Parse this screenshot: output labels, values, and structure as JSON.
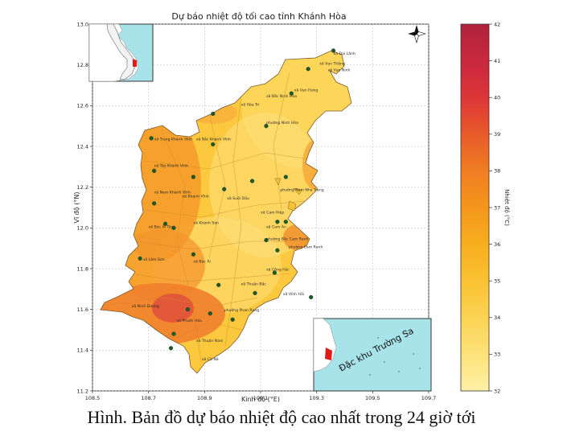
{
  "map": {
    "title": "Dự báo nhiệt độ tối cao tỉnh Khánh Hòa",
    "xlabel": "Kinh độ (°E)",
    "ylabel": "Vĩ độ (°N)",
    "x_ticks": [
      "108.5",
      "108.7",
      "108.9",
      "109.1",
      "109.3",
      "109.5",
      "109.7"
    ],
    "y_ticks": [
      "13.0",
      "12.8",
      "12.6",
      "12.4",
      "12.2",
      "12.0",
      "11.8",
      "11.6",
      "11.4",
      "11.2"
    ],
    "grid": true,
    "inset_label": "Đặc khu Trường Sa",
    "colorbar": {
      "label": "Nhiệt độ (°C)",
      "ticks": [
        "42",
        "41",
        "40",
        "39",
        "38",
        "37",
        "36",
        "35",
        "34",
        "33",
        "32"
      ],
      "colors": [
        "#b0233c",
        "#c8283e",
        "#dd3539",
        "#e85a2a",
        "#f07d22",
        "#f4961c",
        "#f7ae1e",
        "#f9c232",
        "#fbd354",
        "#fde27a",
        "#fef0a6"
      ]
    },
    "labels": [
      {
        "text": "xã Đại Lãnh",
        "lon": 109.36,
        "lat": 12.85
      },
      {
        "text": "xã Vạn Thắng",
        "lon": 109.31,
        "lat": 12.8
      },
      {
        "text": "xã Vạn Ninh",
        "lon": 109.34,
        "lat": 12.77
      },
      {
        "text": "xã Vạn Hưng",
        "lon": 109.22,
        "lat": 12.67
      },
      {
        "text": "xã Bắc Ninh Hòa",
        "lon": 109.12,
        "lat": 12.64
      },
      {
        "text": "xã Hòa Trí",
        "lon": 109.03,
        "lat": 12.6
      },
      {
        "text": "phường Ninh Hòa",
        "lon": 109.12,
        "lat": 12.51
      },
      {
        "text": "xã Bắc Khánh Vĩnh",
        "lon": 108.87,
        "lat": 12.43
      },
      {
        "text": "xã Trung Khánh Vĩnh",
        "lon": 108.72,
        "lat": 12.43
      },
      {
        "text": "xã Tây Khánh Vĩnh",
        "lon": 108.72,
        "lat": 12.3
      },
      {
        "text": "xã Nam Khánh Vĩnh",
        "lon": 108.72,
        "lat": 12.17
      },
      {
        "text": "xã Khánh Vĩnh",
        "lon": 108.82,
        "lat": 12.15
      },
      {
        "text": "xã Suối Dầu",
        "lon": 108.98,
        "lat": 12.14
      },
      {
        "text": "phường Nam Nha Trang",
        "lon": 109.17,
        "lat": 12.18
      },
      {
        "text": "xã Cam Hiệp",
        "lon": 109.1,
        "lat": 12.07
      },
      {
        "text": "xã Khánh Sơn",
        "lon": 108.86,
        "lat": 12.02
      },
      {
        "text": "xã Bác Ái Tây",
        "lon": 108.7,
        "lat": 12.0
      },
      {
        "text": "xã Cam An",
        "lon": 109.12,
        "lat": 12.0
      },
      {
        "text": "phường Bắc Cam Ranh",
        "lon": 109.12,
        "lat": 11.94
      },
      {
        "text": "phường Cam Ranh",
        "lon": 109.2,
        "lat": 11.9
      },
      {
        "text": "xã Lâm Sơn",
        "lon": 108.68,
        "lat": 11.84
      },
      {
        "text": "xã Bác Ái",
        "lon": 108.86,
        "lat": 11.83
      },
      {
        "text": "xã Công Hải",
        "lon": 109.12,
        "lat": 11.79
      },
      {
        "text": "xã Thuận Bắc",
        "lon": 109.03,
        "lat": 11.72
      },
      {
        "text": "xã Vĩnh Hải",
        "lon": 109.18,
        "lat": 11.67
      },
      {
        "text": "xã Ninh Dương",
        "lon": 108.64,
        "lat": 11.61
      },
      {
        "text": "xã Phước Hữu",
        "lon": 108.8,
        "lat": 11.54
      },
      {
        "text": "phường Phan Rang",
        "lon": 108.97,
        "lat": 11.59
      },
      {
        "text": "xã Thuận Nam",
        "lon": 108.87,
        "lat": 11.44
      },
      {
        "text": "xã Cà Ná",
        "lon": 108.89,
        "lat": 11.35
      }
    ],
    "markers": [
      {
        "lon": 109.36,
        "lat": 12.87
      },
      {
        "lon": 109.27,
        "lat": 12.78
      },
      {
        "lon": 109.21,
        "lat": 12.66
      },
      {
        "lon": 108.93,
        "lat": 12.56
      },
      {
        "lon": 109.12,
        "lat": 12.5
      },
      {
        "lon": 108.93,
        "lat": 12.41
      },
      {
        "lon": 108.71,
        "lat": 12.44
      },
      {
        "lon": 108.72,
        "lat": 12.28
      },
      {
        "lon": 108.72,
        "lat": 12.12
      },
      {
        "lon": 108.86,
        "lat": 12.25
      },
      {
        "lon": 108.97,
        "lat": 12.19
      },
      {
        "lon": 109.19,
        "lat": 12.25
      },
      {
        "lon": 109.07,
        "lat": 12.23
      },
      {
        "lon": 109.19,
        "lat": 12.03
      },
      {
        "lon": 109.16,
        "lat": 12.03
      },
      {
        "lon": 108.76,
        "lat": 12.02
      },
      {
        "lon": 108.79,
        "lat": 12.0
      },
      {
        "lon": 109.12,
        "lat": 11.94
      },
      {
        "lon": 109.16,
        "lat": 11.89
      },
      {
        "lon": 108.86,
        "lat": 11.87
      },
      {
        "lon": 108.67,
        "lat": 11.85
      },
      {
        "lon": 109.15,
        "lat": 11.78
      },
      {
        "lon": 108.95,
        "lat": 11.72
      },
      {
        "lon": 109.08,
        "lat": 11.68
      },
      {
        "lon": 109.28,
        "lat": 11.66
      },
      {
        "lon": 108.84,
        "lat": 11.6
      },
      {
        "lon": 108.92,
        "lat": 11.58
      },
      {
        "lon": 109.0,
        "lat": 11.55
      },
      {
        "lon": 108.79,
        "lat": 11.48
      },
      {
        "lon": 108.78,
        "lat": 11.41
      }
    ]
  },
  "caption": "Hình. Bản đồ dự báo nhiệt độ cao nhất trong 24 giờ tới"
}
